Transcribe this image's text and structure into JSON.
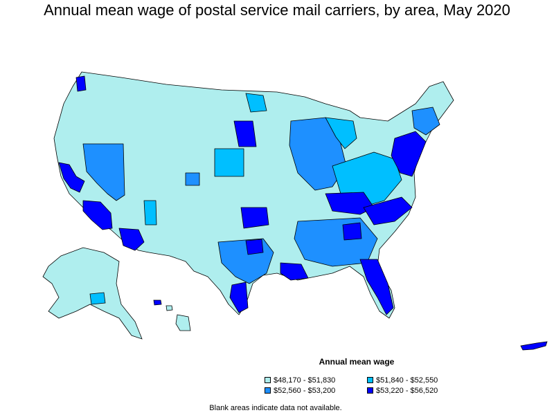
{
  "title": "Annual mean wage of postal service mail carriers, by area, May 2020",
  "legend": {
    "title": "Annual mean wage",
    "items": [
      {
        "label": "$48,170 - $51,830",
        "color": "#afeeee"
      },
      {
        "label": "$51,840 - $52,550",
        "color": "#00bfff"
      },
      {
        "label": "$52,560 - $53,200",
        "color": "#1e90ff"
      },
      {
        "label": "$53,220 - $56,520",
        "color": "#0000ff"
      }
    ]
  },
  "note": "Blank areas indicate data not available.",
  "colors": {
    "bin1": "#afeeee",
    "bin2": "#00bfff",
    "bin3": "#1e90ff",
    "bin4": "#0000ff",
    "border": "#000000"
  }
}
